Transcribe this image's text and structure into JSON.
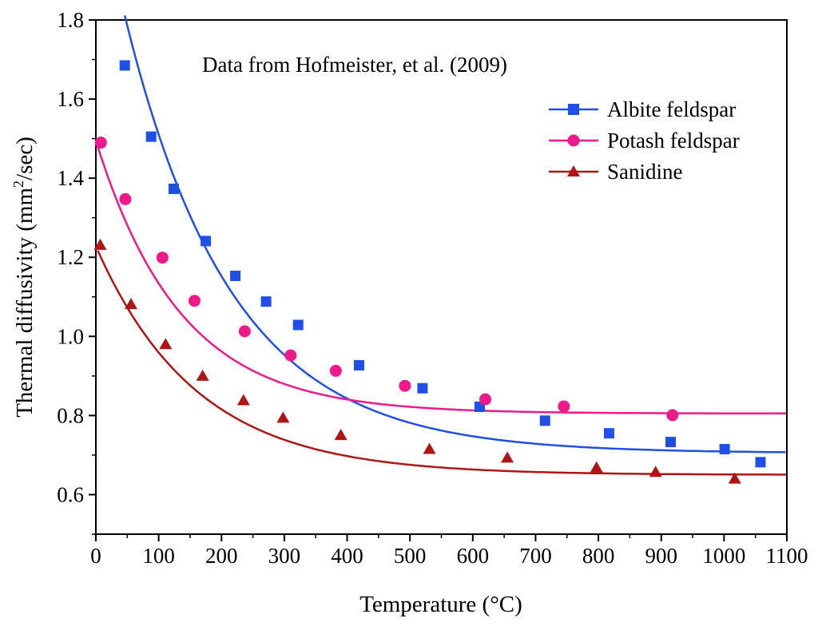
{
  "chart_data": {
    "type": "scatter",
    "annotation": "Data from Hofmeister, et al. (2009)",
    "xlabel": "Temperature (°C)",
    "ylabel_main": "Thermal diffusivity (mm",
    "ylabel_sup": "2",
    "ylabel_end": "/sec)",
    "xlim": [
      0,
      1100
    ],
    "ylim": [
      0.5,
      1.8
    ],
    "xticks": [
      0,
      100,
      200,
      300,
      400,
      500,
      600,
      700,
      800,
      900,
      1000,
      1100
    ],
    "yticks": [
      0.6,
      0.8,
      1.0,
      1.2,
      1.4,
      1.6,
      1.8
    ],
    "ytick_labels": [
      "0.6",
      "0.8",
      "1.0",
      "1.2",
      "1.4",
      "1.6",
      "1.8"
    ],
    "grid": false,
    "legend_position": "top-right",
    "series": [
      {
        "name": "Albite feldspar",
        "color": "#1f4fe6",
        "marker": "square",
        "x": [
          46,
          88,
          124,
          175,
          222,
          271,
          322,
          419,
          520,
          611,
          715,
          817,
          915,
          1001,
          1058
        ],
        "y": [
          1.685,
          1.505,
          1.373,
          1.241,
          1.153,
          1.088,
          1.029,
          0.927,
          0.869,
          0.822,
          0.787,
          0.755,
          0.733,
          0.715,
          0.682
        ],
        "fit": {
          "a": 0.705,
          "b": 1.45,
          "c": 170,
          "x0": 46,
          "x1": 1100
        }
      },
      {
        "name": "Potash feldspar",
        "color": "#ee1a8c",
        "marker": "circle",
        "x": [
          8,
          47,
          106,
          157,
          237,
          310,
          382,
          492,
          620,
          745,
          918
        ],
        "y": [
          1.49,
          1.347,
          1.199,
          1.09,
          1.013,
          0.952,
          0.913,
          0.875,
          0.841,
          0.823,
          0.801
        ],
        "fit": {
          "a": 0.805,
          "b": 0.69,
          "c": 135,
          "x0": 3,
          "x1": 1100
        }
      },
      {
        "name": "Sanidine",
        "color": "#b01515",
        "marker": "triangle",
        "x": [
          7,
          56,
          111,
          170,
          235,
          298,
          390,
          531,
          655,
          797,
          891,
          1017
        ],
        "y": [
          1.231,
          1.081,
          0.98,
          0.9,
          0.838,
          0.794,
          0.75,
          0.715,
          0.693,
          0.668,
          0.657,
          0.64
        ],
        "fit": {
          "a": 0.65,
          "b": 0.578,
          "c": 160,
          "x0": 3,
          "x1": 1100
        }
      }
    ]
  }
}
